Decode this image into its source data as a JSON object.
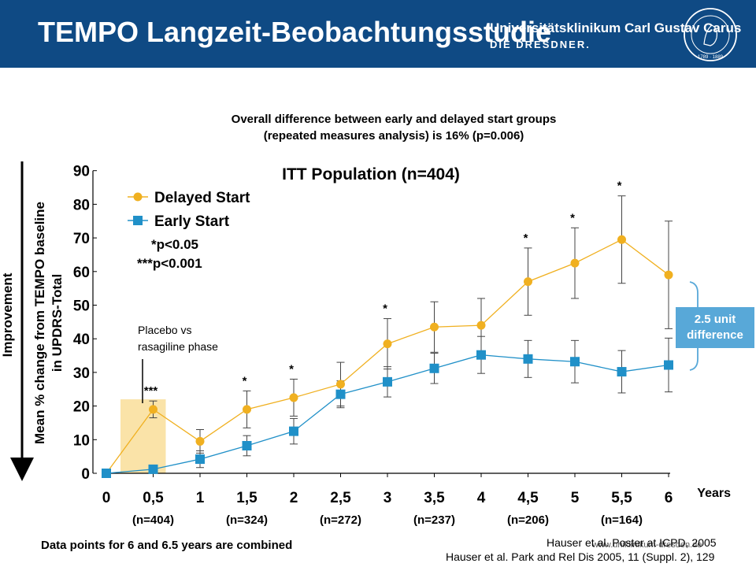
{
  "header": {
    "title": "TEMPO Langzeit-Beobachtungsstudie",
    "institution": "Universitätsklinikum Carl Gustav Carus",
    "institution_sub": "DIE DRESDNER.",
    "seal_years": "1789 · 1889",
    "colors": {
      "bar": "#0f4a84",
      "text": "#ffffff"
    }
  },
  "subtitle_lines": [
    "Overall difference between early and delayed start groups",
    "(repeated  measures analysis) is 16% (p=0.006)"
  ],
  "chart_data": {
    "type": "line",
    "title": "ITT Population (n=404)",
    "ylabel_lines": [
      "Mean % change from TEMPO baseline",
      "in UPDRS-Total"
    ],
    "arrow_label": "Improvement",
    "xlabel": "Years",
    "x": [
      0,
      0.5,
      1,
      1.5,
      2,
      2.5,
      3,
      3.5,
      4,
      4.5,
      5,
      5.5,
      6
    ],
    "x_tick_labels": [
      "0",
      "0,5",
      "1",
      "1,5",
      "2",
      "2,5",
      "3",
      "3,5",
      "4",
      "4,5",
      "5",
      "5,5",
      "6"
    ],
    "ylim": [
      0,
      90
    ],
    "y_ticks": [
      0,
      10,
      20,
      30,
      40,
      50,
      60,
      70,
      80,
      90
    ],
    "series": [
      {
        "name": "Delayed Start",
        "color": "#f0b020",
        "marker": "circle",
        "values": [
          0,
          19,
          9.5,
          19,
          22.5,
          26.5,
          38.5,
          43.5,
          44,
          57,
          62.5,
          69.5,
          59
        ],
        "error": [
          0,
          2.5,
          3.5,
          5.5,
          5.5,
          6.5,
          7.5,
          7.5,
          8,
          10,
          10.5,
          13,
          16
        ]
      },
      {
        "name": "Early Start",
        "color": "#2090c8",
        "marker": "square",
        "values": [
          0,
          1.2,
          4.2,
          8.2,
          12.5,
          23.5,
          27.2,
          31.2,
          35.2,
          34,
          33.2,
          30.2,
          32.2
        ],
        "error": [
          0,
          1,
          2.5,
          3,
          3.8,
          4,
          4.5,
          4.5,
          5.5,
          5.5,
          6.3,
          6.3,
          8
        ]
      }
    ],
    "significance": [
      {
        "x": 0.5,
        "label": "***"
      },
      {
        "x": 1.5,
        "label": "*"
      },
      {
        "x": 2,
        "label": "*"
      },
      {
        "x": 3,
        "label": "*"
      },
      {
        "x": 4.5,
        "label": "*"
      },
      {
        "x": 5,
        "label": "*"
      },
      {
        "x": 5.5,
        "label": "*"
      }
    ],
    "legend_notes": [
      "*p<0.05",
      "***p<0.001"
    ],
    "phase_label_lines": [
      "Placebo vs",
      "rasagiline phase"
    ],
    "phase_range": [
      0,
      0.5
    ],
    "phase_color": "#fae3a8",
    "n_labels": [
      "(n=404)",
      "(n=324)",
      "(n=272)",
      "(n=237)",
      "(n=206)",
      "(n=164)"
    ],
    "n_positions": [
      0.5,
      1.5,
      2.5,
      3.5,
      4.5,
      5.5
    ],
    "difference_label_lines": [
      "2.5 unit",
      "difference"
    ],
    "difference_color": "#58a8d8"
  },
  "footnote": "Data points for 6 and 6.5 years are combined",
  "references": [
    "Hauser et al. Poster at ICPD, 2005",
    "Hauser et al. Park and Rel Dis 2005, 11 (Suppl. 2), 129"
  ],
  "url": "www.uniklinikum-dresden.de"
}
